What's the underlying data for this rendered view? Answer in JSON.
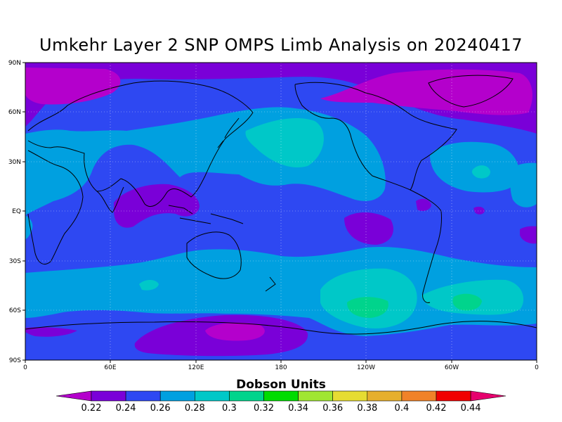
{
  "title": "Umkehr Layer 2 SNP OMPS Limb Analysis on 20240417",
  "lat_labels": [
    "90N",
    "60N",
    "30N",
    "EQ",
    "30S",
    "60S",
    "90S"
  ],
  "lon_labels": [
    "0",
    "60E",
    "120E",
    "180",
    "120W",
    "60W",
    "0"
  ],
  "colorbar": {
    "title": "Dobson Units",
    "ticks": [
      "0.22",
      "0.24",
      "0.26",
      "0.28",
      "0.3",
      "0.32",
      "0.34",
      "0.36",
      "0.38",
      "0.4",
      "0.42",
      "0.44"
    ],
    "colors": [
      "#b400cc",
      "#7a00d8",
      "#2e48f2",
      "#00a0e0",
      "#00c8c8",
      "#00d48c",
      "#00dc00",
      "#a0e632",
      "#e6dc32",
      "#e6af2d",
      "#f08228",
      "#f00000",
      "#e6006e"
    ]
  },
  "map_colors": {
    "background": "#2e48f2",
    "light_band": "#00a0e0",
    "cyan": "#00c8c8",
    "green": "#00d48c",
    "purple": "#7a00d8",
    "magenta": "#b400cc"
  }
}
